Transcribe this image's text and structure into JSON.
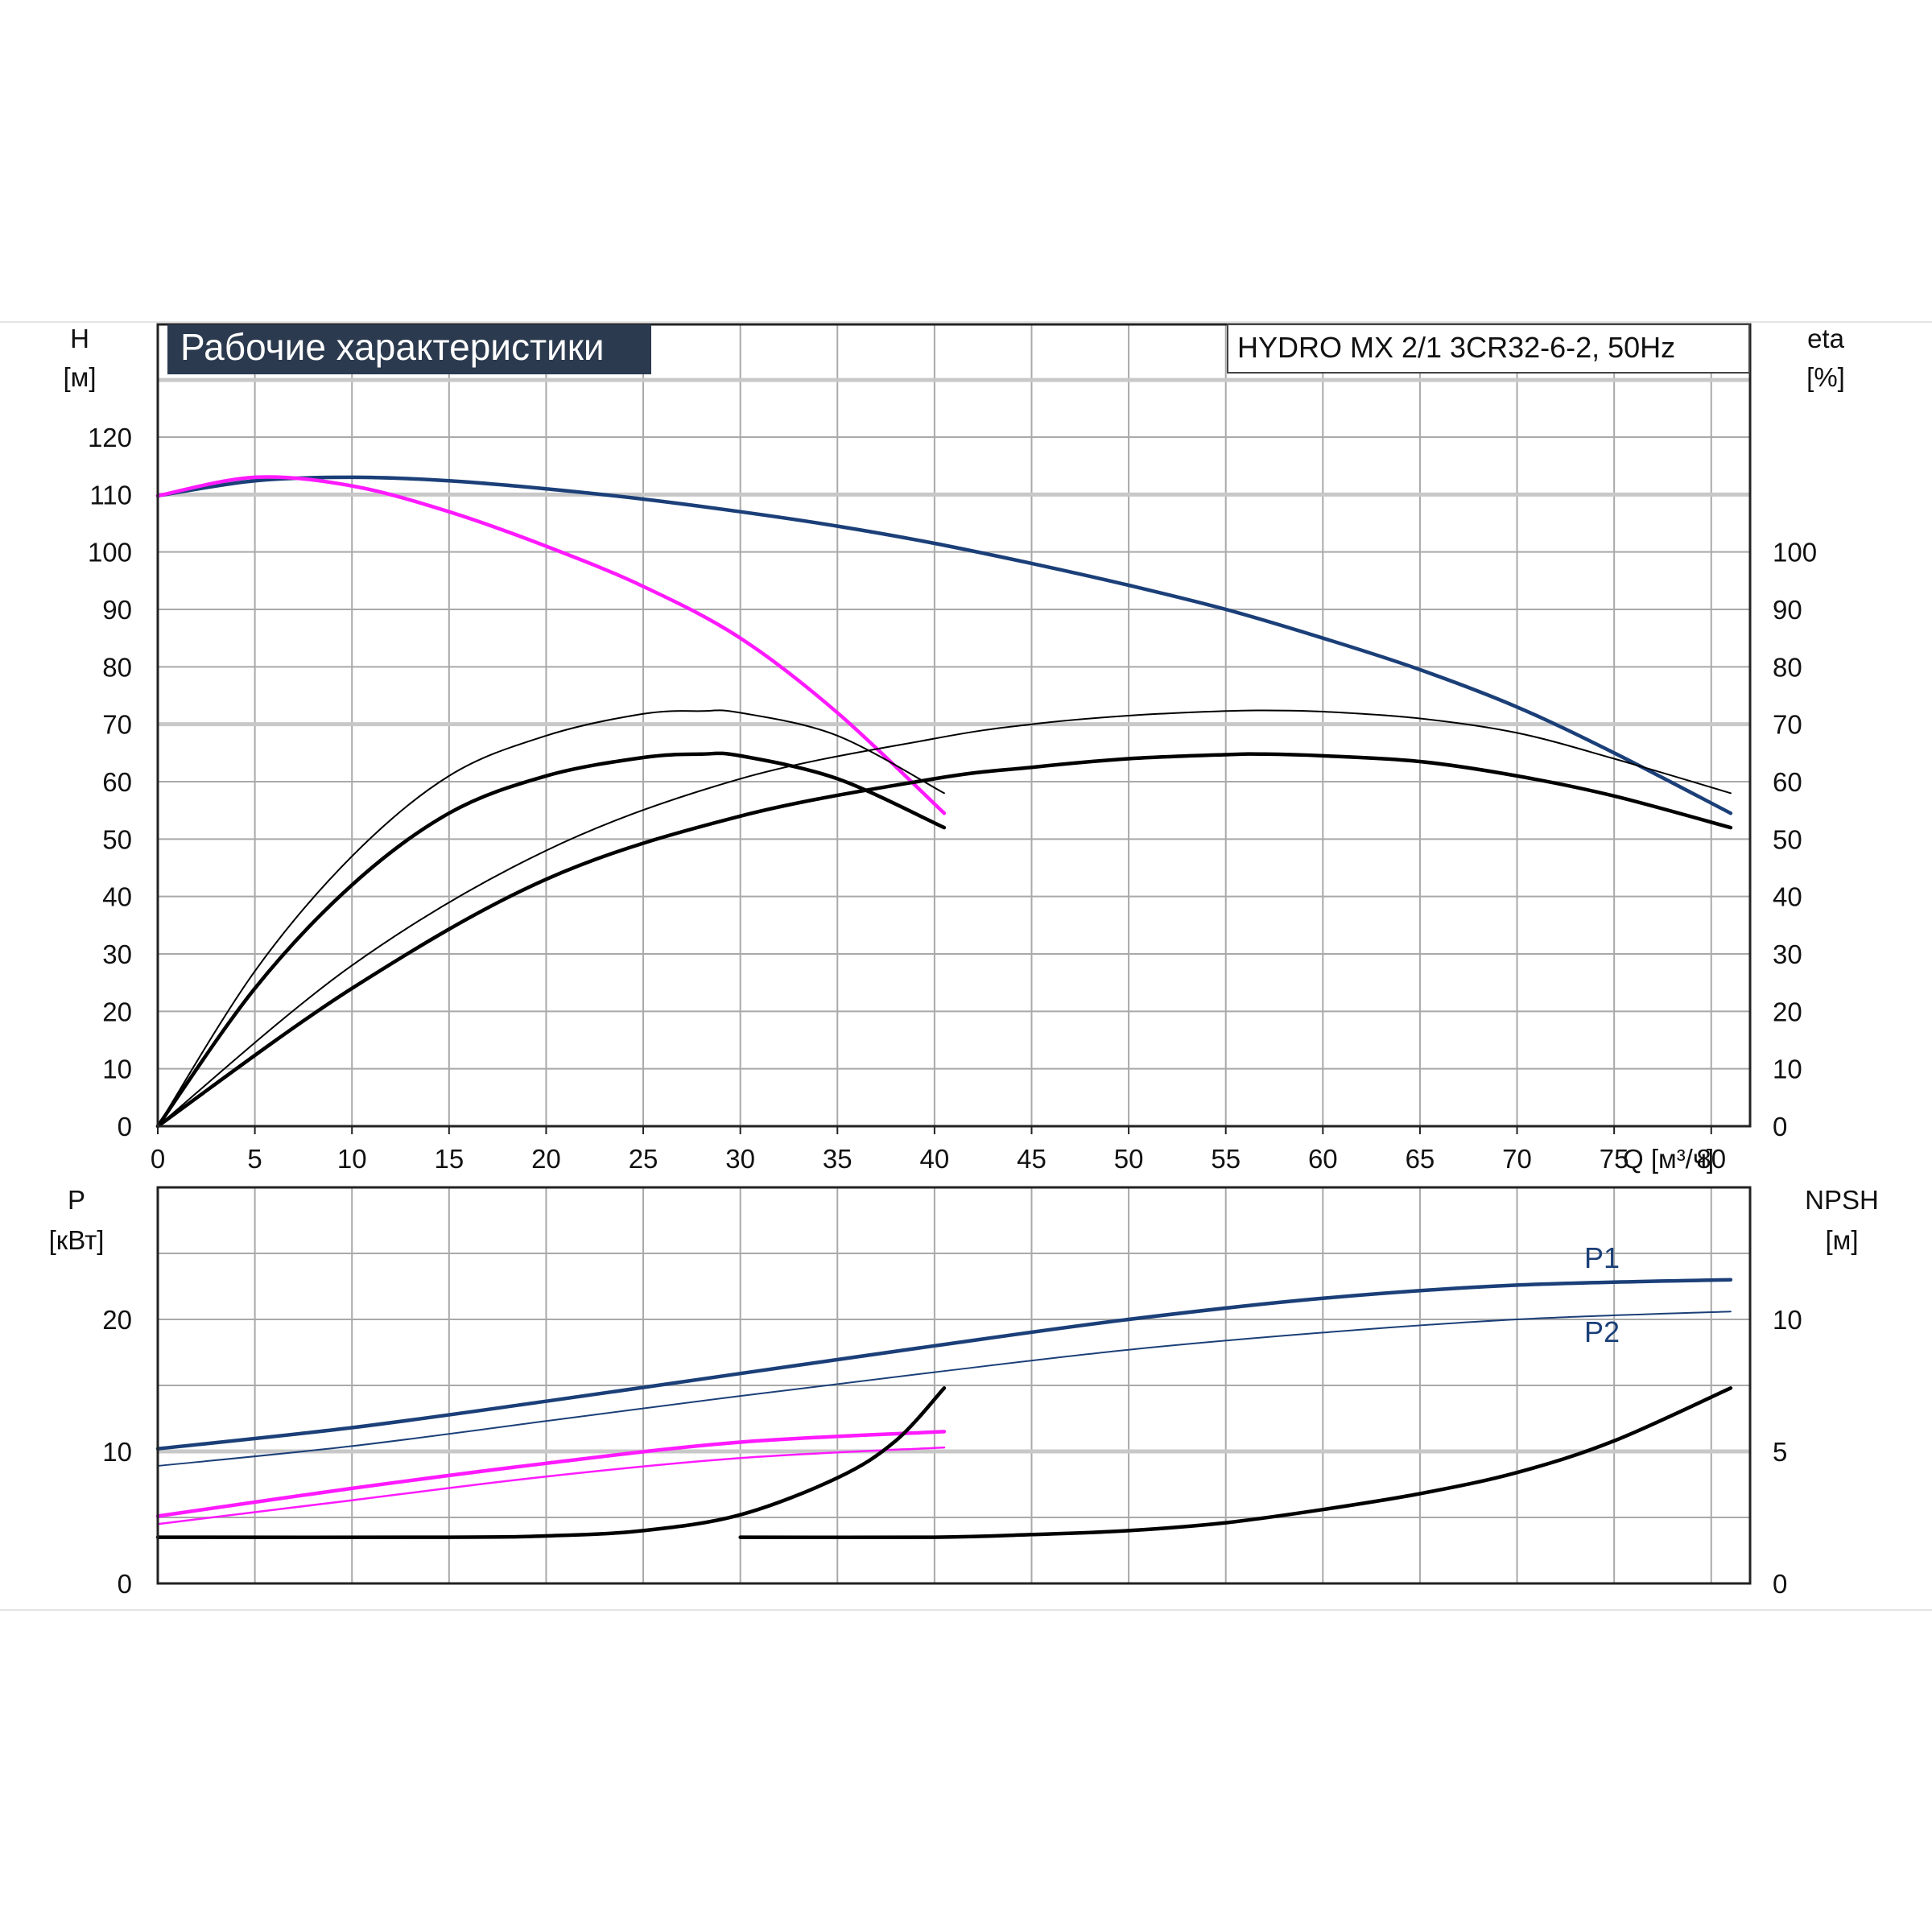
{
  "chart_data": [
    {
      "type": "line",
      "title": "Рабочие характеристики",
      "model_label": "HYDRO MX 2/1 3CR32-6-2, 50Hz",
      "left_axis": {
        "label": "H",
        "unit": "[м]",
        "range": [
          0,
          120
        ],
        "ticks": [
          "0",
          "10",
          "20",
          "30",
          "40",
          "50",
          "60",
          "70",
          "80",
          "90",
          "100",
          "110",
          "120"
        ]
      },
      "right_axis": {
        "label": "eta",
        "unit": "[%]",
        "range": [
          0,
          120
        ],
        "ticks": [
          "0",
          "10",
          "20",
          "30",
          "40",
          "50",
          "60",
          "70",
          "80",
          "90",
          "100"
        ]
      },
      "x_axis": {
        "label": "Q [м³/ч]",
        "range": [
          0,
          82
        ],
        "ticks": [
          "0",
          "5",
          "10",
          "15",
          "20",
          "25",
          "30",
          "35",
          "40",
          "45",
          "50",
          "55",
          "60",
          "65",
          "70",
          "75",
          "80"
        ]
      },
      "grid": true,
      "series": [
        {
          "role": "head-two-pumps",
          "color": "#1b3f78",
          "x": [
            0,
            5,
            10,
            15,
            20,
            25,
            30,
            35,
            40,
            45,
            50,
            55,
            60,
            65,
            70,
            75,
            81
          ],
          "y": [
            109.8,
            112.4,
            113,
            112.4,
            111,
            109.2,
            107,
            104.5,
            101.5,
            98,
            94.2,
            90,
            85,
            79.5,
            73,
            65,
            54.5
          ]
        },
        {
          "role": "head-one-pump",
          "color": "#ff1aff",
          "x": [
            0,
            5,
            10,
            15,
            20,
            25,
            30,
            35,
            40.5
          ],
          "y": [
            109.8,
            113,
            111.5,
            107,
            101,
            94,
            85,
            72,
            54.5
          ]
        },
        {
          "role": "efficiency-pump-one-pump",
          "color": "#000000",
          "x": [
            0,
            5,
            10,
            15,
            20,
            25,
            28,
            30,
            35,
            40.5
          ],
          "y": [
            0,
            27,
            47,
            61,
            68,
            71.8,
            72.3,
            72,
            68,
            58
          ]
        },
        {
          "role": "efficiency-total-one-pump",
          "color": "#000000",
          "x": [
            0,
            5,
            10,
            15,
            20,
            25,
            28,
            30,
            35,
            40.5
          ],
          "y": [
            0,
            24,
            42,
            54.5,
            61,
            64.2,
            64.8,
            64.5,
            60.5,
            52
          ]
        },
        {
          "role": "efficiency-pump-two-pumps",
          "color": "#000000",
          "x": [
            0,
            10,
            20,
            30,
            40,
            45,
            50,
            55,
            57,
            60,
            65,
            70,
            75,
            81
          ],
          "y": [
            0,
            28,
            48,
            60.5,
            67.5,
            70,
            71.5,
            72.3,
            72.4,
            72.2,
            71,
            68.5,
            64,
            58
          ]
        },
        {
          "role": "efficiency-total-two-pumps",
          "color": "#000000",
          "x": [
            0,
            10,
            20,
            30,
            40,
            45,
            50,
            55,
            57,
            60,
            65,
            70,
            75,
            81
          ],
          "y": [
            0,
            24,
            43,
            54,
            60.5,
            62.5,
            64,
            64.7,
            64.8,
            64.5,
            63.5,
            61,
            57.5,
            52
          ]
        }
      ]
    },
    {
      "type": "line",
      "left_axis": {
        "label": "P",
        "unit": "[кВт]",
        "range": [
          0,
          25.5
        ],
        "ticks": [
          "0",
          "10",
          "20"
        ]
      },
      "right_axis": {
        "label": "NPSH",
        "unit": "[м]",
        "range": [
          0,
          12.75
        ],
        "ticks": [
          "0",
          "5",
          "10"
        ]
      },
      "x_axis": {
        "range": [
          0,
          82
        ]
      },
      "grid": true,
      "series": [
        {
          "name": "P1",
          "color": "#1b3f78",
          "x": [
            0,
            10,
            20,
            30,
            40,
            50,
            60,
            70,
            81
          ],
          "y": [
            10.2,
            11.8,
            13.8,
            15.9,
            18,
            20,
            21.6,
            22.6,
            23
          ]
        },
        {
          "name": "P2",
          "color": "#1b3f78",
          "x": [
            0,
            10,
            20,
            30,
            40,
            50,
            60,
            70,
            81
          ],
          "y": [
            8.9,
            10.4,
            12.3,
            14.2,
            16,
            17.7,
            19,
            20,
            20.6
          ]
        },
        {
          "role": "P1-one-pump",
          "color": "#ff1aff",
          "x": [
            0,
            10,
            20,
            30,
            40.5
          ],
          "y": [
            5.1,
            7.2,
            9.1,
            10.7,
            11.5
          ]
        },
        {
          "role": "P2-one-pump",
          "color": "#ff1aff",
          "x": [
            0,
            10,
            20,
            30,
            40.5
          ],
          "y": [
            4.5,
            6.3,
            8.1,
            9.5,
            10.3
          ]
        },
        {
          "role": "NPSH-one-pump",
          "axis": "right",
          "color": "#000000",
          "x": [
            0,
            15,
            20,
            25,
            30,
            35,
            38,
            40.5
          ],
          "y": [
            1.75,
            1.75,
            1.8,
            2.0,
            2.6,
            4.0,
            5.4,
            7.4
          ]
        },
        {
          "role": "NPSH-two-pumps",
          "axis": "right",
          "color": "#000000",
          "x": [
            30,
            40,
            45,
            50,
            55,
            60,
            65,
            70,
            75,
            81
          ],
          "y": [
            1.75,
            1.75,
            1.85,
            2.0,
            2.3,
            2.8,
            3.4,
            4.2,
            5.4,
            7.4
          ]
        }
      ],
      "annotations": [
        "P1",
        "P2"
      ]
    }
  ]
}
